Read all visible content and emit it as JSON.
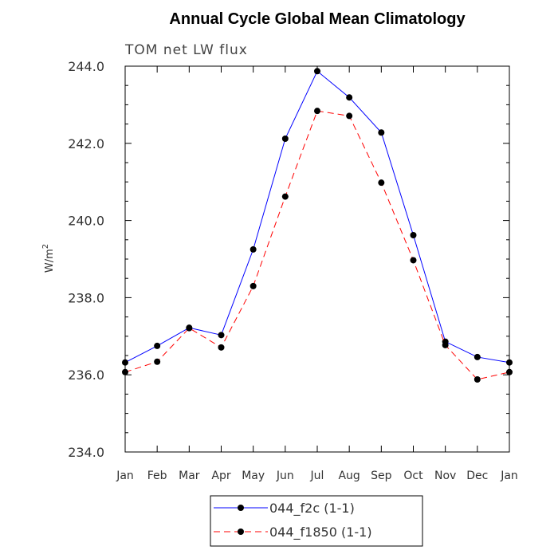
{
  "chart_data": {
    "type": "line",
    "title": "Annual Cycle Global Mean Climatology",
    "subtitle": "TOM net LW flux",
    "xlabel": "",
    "ylabel": "W/m",
    "ylabel_superscript": "2",
    "categories": [
      "Jan",
      "Feb",
      "Mar",
      "Apr",
      "May",
      "Jun",
      "Jul",
      "Aug",
      "Sep",
      "Oct",
      "Nov",
      "Dec",
      "Jan"
    ],
    "ylim": [
      234.0,
      244.0
    ],
    "yticks": [
      234.0,
      236.0,
      238.0,
      240.0,
      242.0,
      244.0
    ],
    "ytick_labels": [
      "234.0",
      "236.0",
      "238.0",
      "240.0",
      "242.0",
      "244.0"
    ],
    "grid": false,
    "legend_position": "bottom-center",
    "series": [
      {
        "name": "044_f2c (1-1)",
        "color": "#0000ff",
        "dash": "solid",
        "values": [
          236.32,
          236.75,
          237.22,
          237.03,
          239.25,
          242.12,
          243.87,
          243.19,
          242.28,
          239.62,
          236.86,
          236.46,
          236.32
        ]
      },
      {
        "name": "044_f1850 (1-1)",
        "color": "#ff0000",
        "dash": "dashed",
        "values": [
          236.07,
          236.34,
          237.21,
          236.71,
          238.3,
          240.62,
          242.84,
          242.71,
          240.98,
          238.97,
          236.77,
          235.88,
          236.07
        ]
      }
    ]
  }
}
